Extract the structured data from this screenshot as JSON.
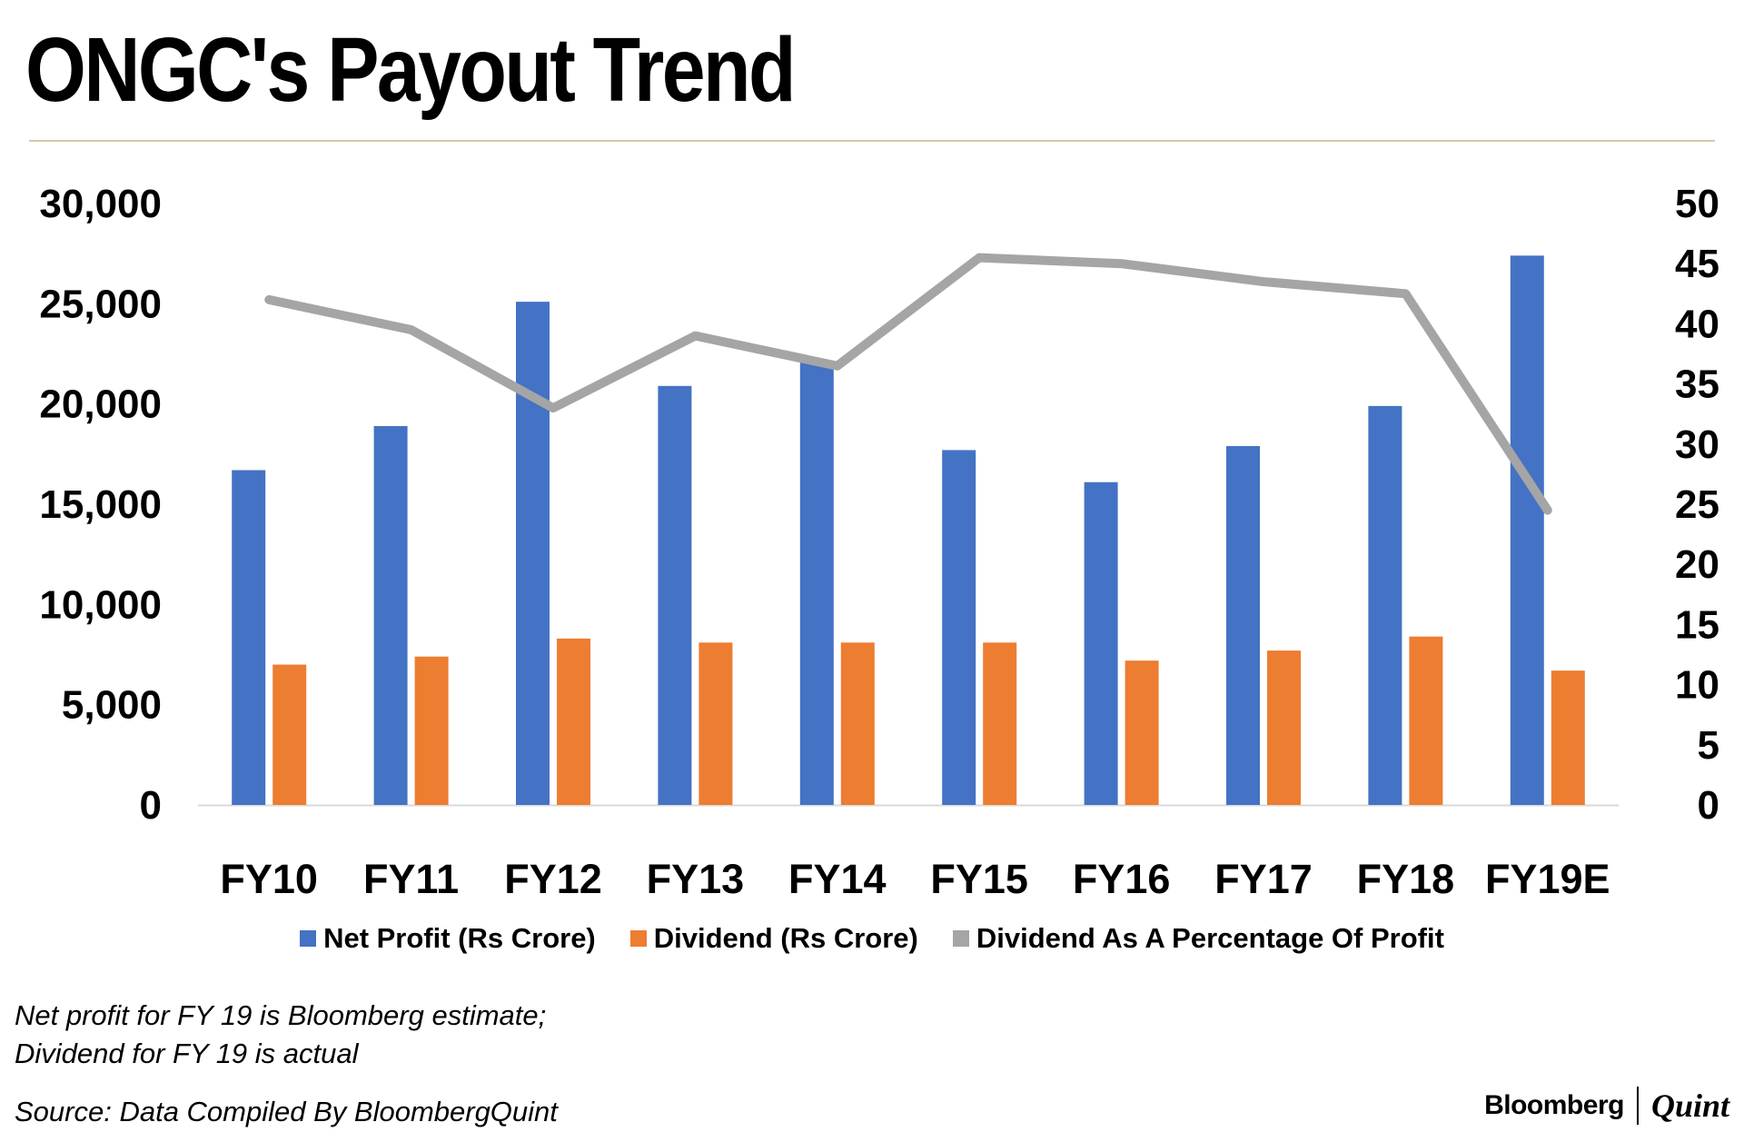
{
  "title": "ONGC's Payout Trend",
  "colors": {
    "net_profit": "#4472c4",
    "dividend": "#ed7d31",
    "percentage": "#a5a5a5",
    "rule": "#d9c7a4"
  },
  "chart_data": {
    "type": "bar",
    "categories": [
      "FY10",
      "FY11",
      "FY12",
      "FY13",
      "FY14",
      "FY15",
      "FY16",
      "FY17",
      "FY18",
      "FY19E"
    ],
    "series": [
      {
        "name": "Net Profit (Rs Crore)",
        "type": "bar",
        "axis": "left",
        "values": [
          16700,
          18900,
          25100,
          20900,
          22100,
          17700,
          16100,
          17900,
          19900,
          27400
        ]
      },
      {
        "name": "Dividend (Rs Crore)",
        "type": "bar",
        "axis": "left",
        "values": [
          7000,
          7400,
          8300,
          8100,
          8100,
          8100,
          7200,
          7700,
          8400,
          6700
        ]
      },
      {
        "name": "Dividend As A Percentage Of Profit",
        "type": "line",
        "axis": "right",
        "values": [
          42,
          39.5,
          33,
          39,
          36.5,
          45.5,
          45,
          43.5,
          42.5,
          24.5
        ]
      }
    ],
    "y_left": {
      "min": 0,
      "max": 30000,
      "ticks": [
        "0",
        "5,000",
        "10,000",
        "15,000",
        "20,000",
        "25,000",
        "30,000"
      ]
    },
    "y_right": {
      "min": 0,
      "max": 50,
      "ticks": [
        "0",
        "5",
        "10",
        "15",
        "20",
        "25",
        "30",
        "35",
        "40",
        "45",
        "50"
      ]
    },
    "grid": false,
    "legend_position": "bottom"
  },
  "notes": [
    "Net profit for FY 19 is Bloomberg estimate;",
    "Dividend for FY 19 is actual"
  ],
  "source": "Source: Data Compiled By BloombergQuint",
  "logo": {
    "primary": "Bloomberg",
    "secondary": "Quint"
  }
}
